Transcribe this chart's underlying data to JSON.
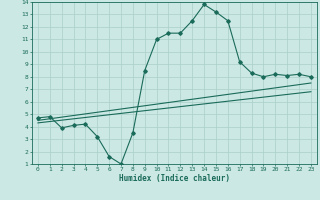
{
  "xlabel": "Humidex (Indice chaleur)",
  "xlim": [
    -0.5,
    23.5
  ],
  "ylim": [
    1,
    14
  ],
  "xticks": [
    0,
    1,
    2,
    3,
    4,
    5,
    6,
    7,
    8,
    9,
    10,
    11,
    12,
    13,
    14,
    15,
    16,
    17,
    18,
    19,
    20,
    21,
    22,
    23
  ],
  "yticks": [
    1,
    2,
    3,
    4,
    5,
    6,
    7,
    8,
    9,
    10,
    11,
    12,
    13,
    14
  ],
  "bg_color": "#cce8e4",
  "line_color": "#1a6b5a",
  "grid_color": "#aacfca",
  "main_curve_x": [
    0,
    1,
    2,
    3,
    4,
    5,
    6,
    7,
    8,
    9,
    10,
    11,
    12,
    13,
    14,
    15,
    16,
    17,
    18,
    19,
    20,
    21,
    22,
    23
  ],
  "main_curve_y": [
    4.7,
    4.8,
    3.9,
    4.1,
    4.2,
    3.2,
    1.6,
    1.0,
    3.5,
    8.5,
    11.0,
    11.5,
    11.5,
    12.5,
    13.8,
    13.2,
    12.5,
    9.2,
    8.3,
    8.0,
    8.2,
    8.1,
    8.2,
    8.0
  ],
  "line2_x": [
    0,
    23
  ],
  "line2_y": [
    4.5,
    7.5
  ],
  "line3_x": [
    0,
    23
  ],
  "line3_y": [
    4.3,
    6.8
  ]
}
